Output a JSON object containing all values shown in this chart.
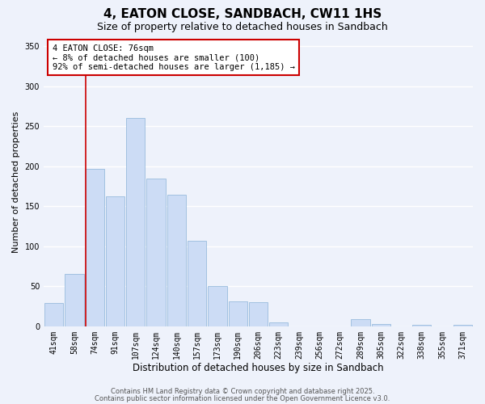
{
  "title": "4, EATON CLOSE, SANDBACH, CW11 1HS",
  "subtitle": "Size of property relative to detached houses in Sandbach",
  "xlabel": "Distribution of detached houses by size in Sandbach",
  "ylabel": "Number of detached properties",
  "bin_labels": [
    "41sqm",
    "58sqm",
    "74sqm",
    "91sqm",
    "107sqm",
    "124sqm",
    "140sqm",
    "157sqm",
    "173sqm",
    "190sqm",
    "206sqm",
    "223sqm",
    "239sqm",
    "256sqm",
    "272sqm",
    "289sqm",
    "305sqm",
    "322sqm",
    "338sqm",
    "355sqm",
    "371sqm"
  ],
  "bar_values": [
    29,
    65,
    197,
    162,
    260,
    185,
    165,
    107,
    50,
    31,
    30,
    5,
    0,
    0,
    0,
    9,
    3,
    0,
    2,
    0,
    2
  ],
  "bar_color": "#ccdcf5",
  "bar_edgecolor": "#99bbdd",
  "vline_color": "#cc0000",
  "vline_index": 2,
  "annotation_line1": "4 EATON CLOSE: 76sqm",
  "annotation_line2": "← 8% of detached houses are smaller (100)",
  "annotation_line3": "92% of semi-detached houses are larger (1,185) →",
  "annotation_box_edgecolor": "#cc0000",
  "annotation_box_facecolor": "#ffffff",
  "ylim": [
    0,
    360
  ],
  "yticks": [
    0,
    50,
    100,
    150,
    200,
    250,
    300,
    350
  ],
  "footer1": "Contains HM Land Registry data © Crown copyright and database right 2025.",
  "footer2": "Contains public sector information licensed under the Open Government Licence v3.0.",
  "background_color": "#eef2fb",
  "grid_color": "#ffffff",
  "title_fontsize": 11,
  "subtitle_fontsize": 9,
  "xlabel_fontsize": 8.5,
  "ylabel_fontsize": 8,
  "tick_fontsize": 7,
  "annot_fontsize": 7.5,
  "footer_fontsize": 6
}
